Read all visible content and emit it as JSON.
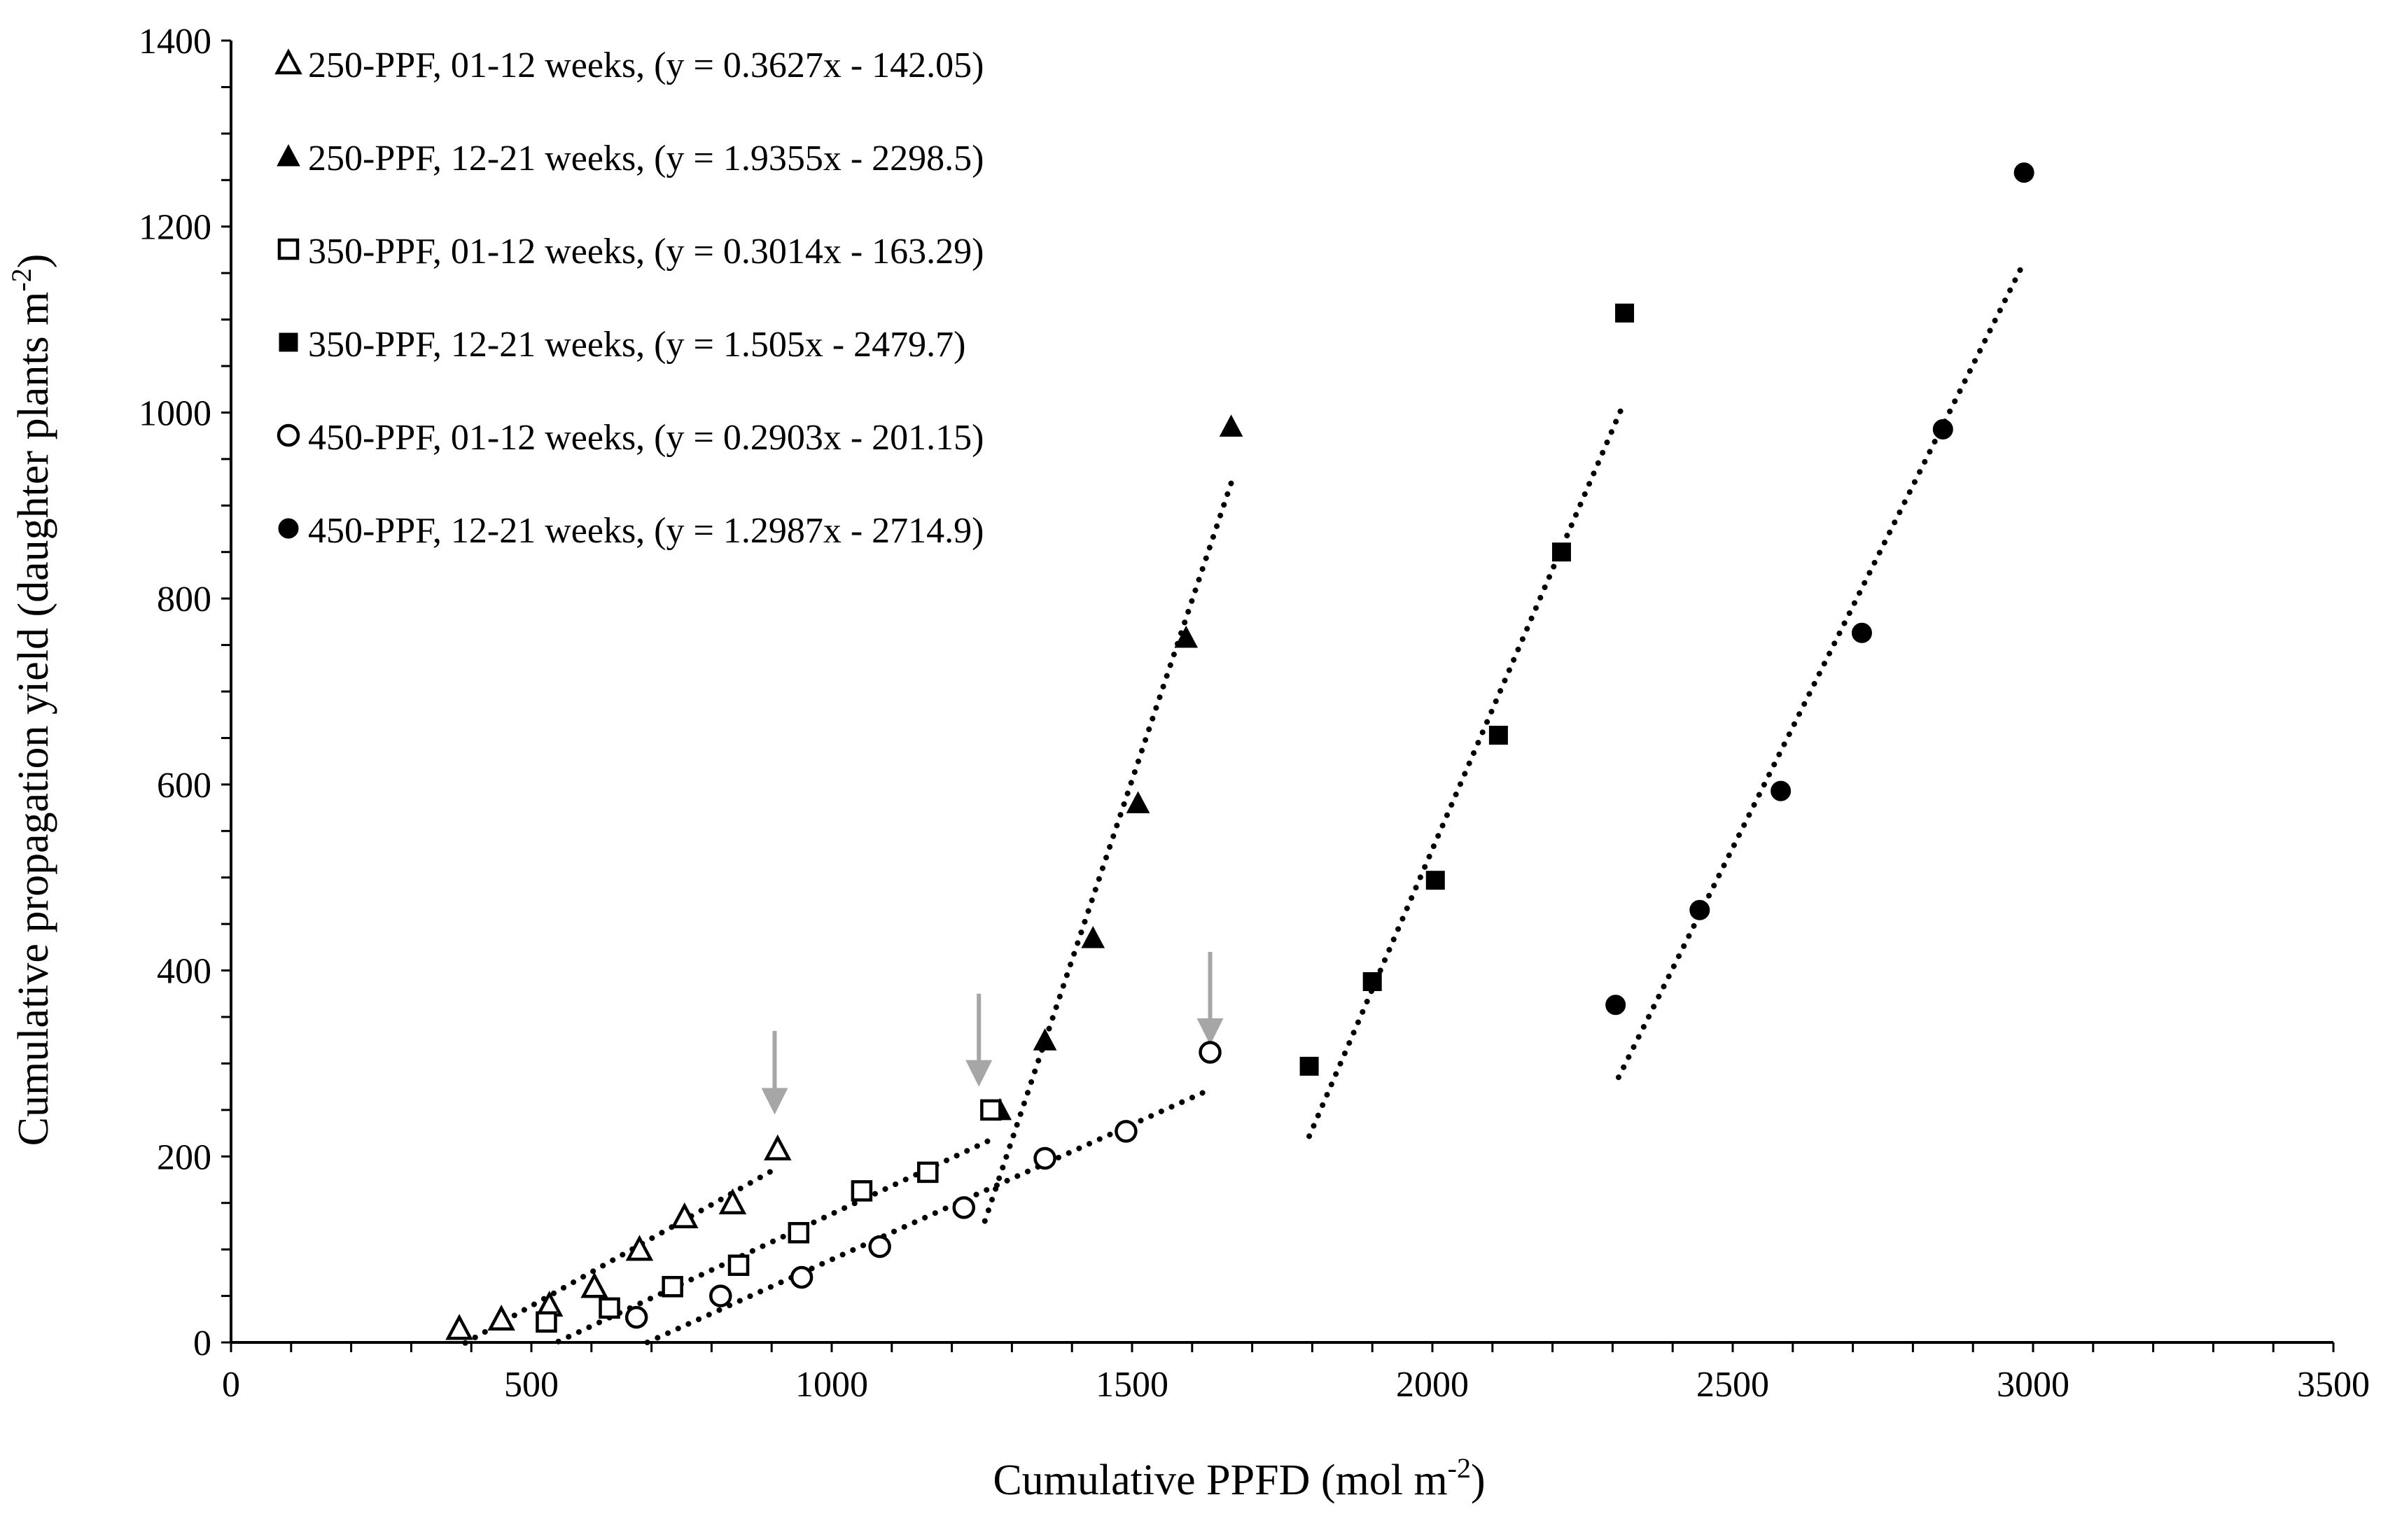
{
  "chart_data": {
    "type": "scatter",
    "title": "",
    "xlabel": "Cumulative PPFD (mol m",
    "xlabel_sup": "-2",
    "xlabel_end": ")",
    "ylabel": "Cumulative propagation yield (daughter plants m",
    "ylabel_sup": "-2",
    "ylabel_end": ")",
    "xlim": [
      0,
      3500
    ],
    "ylim": [
      0,
      1400
    ],
    "xticks": [
      0,
      500,
      1000,
      1500,
      2000,
      2500,
      3000,
      3500
    ],
    "yticks": [
      0,
      200,
      400,
      600,
      800,
      1000,
      1200,
      1400
    ],
    "xtick_labels": [
      "0",
      "500",
      "1000",
      "1500",
      "2000",
      "2500",
      "3000",
      "3500"
    ],
    "ytick_labels": [
      "0",
      "200",
      "400",
      "600",
      "800",
      "1000",
      "1200",
      "1400"
    ],
    "grid": false,
    "legend_position": "top-left",
    "series": [
      {
        "name": "250-PPF, 01-12 weeks, (y = 0.3627x - 142.05)",
        "marker": "triangle-open",
        "x": [
          380,
          450,
          530,
          605,
          680,
          755,
          835,
          910
        ],
        "y": [
          15,
          25,
          40,
          60,
          100,
          135,
          150,
          208
        ],
        "trend": {
          "slope": 0.3627,
          "intercept": -142.05,
          "x_range": [
            390,
            905
          ]
        }
      },
      {
        "name": "250-PPF, 12-21 weeks, (y = 1.9355x - 2298.5)",
        "marker": "triangle-filled",
        "x": [
          1280,
          1355,
          1435,
          1510,
          1590,
          1665
        ],
        "y": [
          250,
          325,
          435,
          580,
          758,
          985
        ],
        "trend": {
          "slope": 1.9355,
          "intercept": -2298.5,
          "x_range": [
            1255,
            1665
          ]
        }
      },
      {
        "name": "350-PPF, 01-12 weeks, (y = 0.3014x - 163.29)",
        "marker": "square-open",
        "x": [
          525,
          630,
          735,
          845,
          945,
          1050,
          1160,
          1265
        ],
        "y": [
          22,
          37,
          60,
          83,
          118,
          163,
          183,
          250
        ],
        "trend": {
          "slope": 0.3014,
          "intercept": -163.29,
          "x_range": [
            545,
            1265
          ]
        }
      },
      {
        "name": "350-PPF, 12-21 weeks, (y = 1.505x - 2479.7)",
        "marker": "square-filled",
        "x": [
          1795,
          1900,
          2005,
          2110,
          2215,
          2320
        ],
        "y": [
          297,
          388,
          497,
          653,
          850,
          1107
        ],
        "trend": {
          "slope": 1.505,
          "intercept": -2479.7,
          "x_range": [
            1795,
            2320
          ]
        }
      },
      {
        "name": "450-PPF, 01-12 weeks, (y = 0.2903x - 201.15)",
        "marker": "circle-open",
        "x": [
          675,
          815,
          950,
          1080,
          1220,
          1355,
          1490,
          1630
        ],
        "y": [
          27,
          50,
          70,
          103,
          145,
          198,
          227,
          312
        ],
        "trend": {
          "slope": 0.2903,
          "intercept": -201.15,
          "x_range": [
            693,
            1630
          ]
        }
      },
      {
        "name": "450-PPF, 12-21 weeks, (y = 1.2987x - 2714.9)",
        "marker": "circle-filled",
        "x": [
          2305,
          2445,
          2580,
          2715,
          2850,
          2985
        ],
        "y": [
          363,
          465,
          593,
          763,
          982,
          1258
        ],
        "trend": {
          "slope": 1.2987,
          "intercept": -2714.9,
          "x_range": [
            2310,
            2985
          ]
        }
      }
    ],
    "annotations": [
      {
        "type": "arrow-down",
        "x": 905,
        "y_from": 335,
        "y_to": 245,
        "color": "#a6a6a6"
      },
      {
        "type": "arrow-down",
        "x": 1245,
        "y_from": 375,
        "y_to": 275,
        "color": "#a6a6a6"
      },
      {
        "type": "arrow-down",
        "x": 1630,
        "y_from": 420,
        "y_to": 320,
        "color": "#a6a6a6"
      }
    ]
  }
}
